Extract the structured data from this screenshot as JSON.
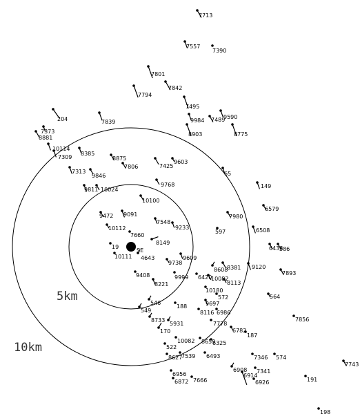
{
  "map": {
    "rings": [
      {
        "label": "5km"
      },
      {
        "label": "10km"
      }
    ],
    "center_label": "SE",
    "stations": [
      {
        "label": "7713"
      },
      {
        "label": "7557"
      },
      {
        "label": "7390"
      },
      {
        "label": "7801"
      },
      {
        "label": "7842"
      },
      {
        "label": "7794"
      },
      {
        "label": "7495"
      },
      {
        "label": "9984"
      },
      {
        "label": "7489"
      },
      {
        "label": "9590"
      },
      {
        "label": "8903"
      },
      {
        "label": "8775"
      },
      {
        "label": "204"
      },
      {
        "label": "7839"
      },
      {
        "label": "7373"
      },
      {
        "label": "8881"
      },
      {
        "label": "10114"
      },
      {
        "label": "7309"
      },
      {
        "label": "8385"
      },
      {
        "label": "8875"
      },
      {
        "label": "7806"
      },
      {
        "label": "7425"
      },
      {
        "label": "9603"
      },
      {
        "label": "7313"
      },
      {
        "label": "9846"
      },
      {
        "label": "9768"
      },
      {
        "label": "65"
      },
      {
        "label": "149"
      },
      {
        "label": "9811"
      },
      {
        "label": "10024"
      },
      {
        "label": "10100"
      },
      {
        "label": "6579"
      },
      {
        "label": "9472"
      },
      {
        "label": "9091"
      },
      {
        "label": "7548"
      },
      {
        "label": "7980"
      },
      {
        "label": "10112"
      },
      {
        "label": "9233"
      },
      {
        "label": "597"
      },
      {
        "label": "6508"
      },
      {
        "label": "7660"
      },
      {
        "label": "8149"
      },
      {
        "label": "6438"
      },
      {
        "label": "586"
      },
      {
        "label": "19"
      },
      {
        "label": "10111"
      },
      {
        "label": "4643"
      },
      {
        "label": "9609"
      },
      {
        "label": "9738"
      },
      {
        "label": "8381"
      },
      {
        "label": "8608"
      },
      {
        "label": "9120"
      },
      {
        "label": "7893"
      },
      {
        "label": "9408"
      },
      {
        "label": "9999"
      },
      {
        "label": "6420"
      },
      {
        "label": "10082"
      },
      {
        "label": "8113"
      },
      {
        "label": "8221"
      },
      {
        "label": "10180"
      },
      {
        "label": "572"
      },
      {
        "label": "564"
      },
      {
        "label": "546"
      },
      {
        "label": "188"
      },
      {
        "label": "9697"
      },
      {
        "label": "549"
      },
      {
        "label": "8116"
      },
      {
        "label": "6986"
      },
      {
        "label": "8733"
      },
      {
        "label": "7856"
      },
      {
        "label": "5931"
      },
      {
        "label": "7778"
      },
      {
        "label": "170"
      },
      {
        "label": "6782"
      },
      {
        "label": "187"
      },
      {
        "label": "10082"
      },
      {
        "label": "8659"
      },
      {
        "label": "6325"
      },
      {
        "label": "574"
      },
      {
        "label": "7346"
      },
      {
        "label": "522"
      },
      {
        "label": "8627"
      },
      {
        "label": "7539"
      },
      {
        "label": "6493"
      },
      {
        "label": "7743"
      },
      {
        "label": "6908"
      },
      {
        "label": "7341"
      },
      {
        "label": "6914"
      },
      {
        "label": "191"
      },
      {
        "label": "6956"
      },
      {
        "label": "6926"
      },
      {
        "label": "6872"
      },
      {
        "label": "7666"
      },
      {
        "label": "198"
      }
    ]
  }
}
